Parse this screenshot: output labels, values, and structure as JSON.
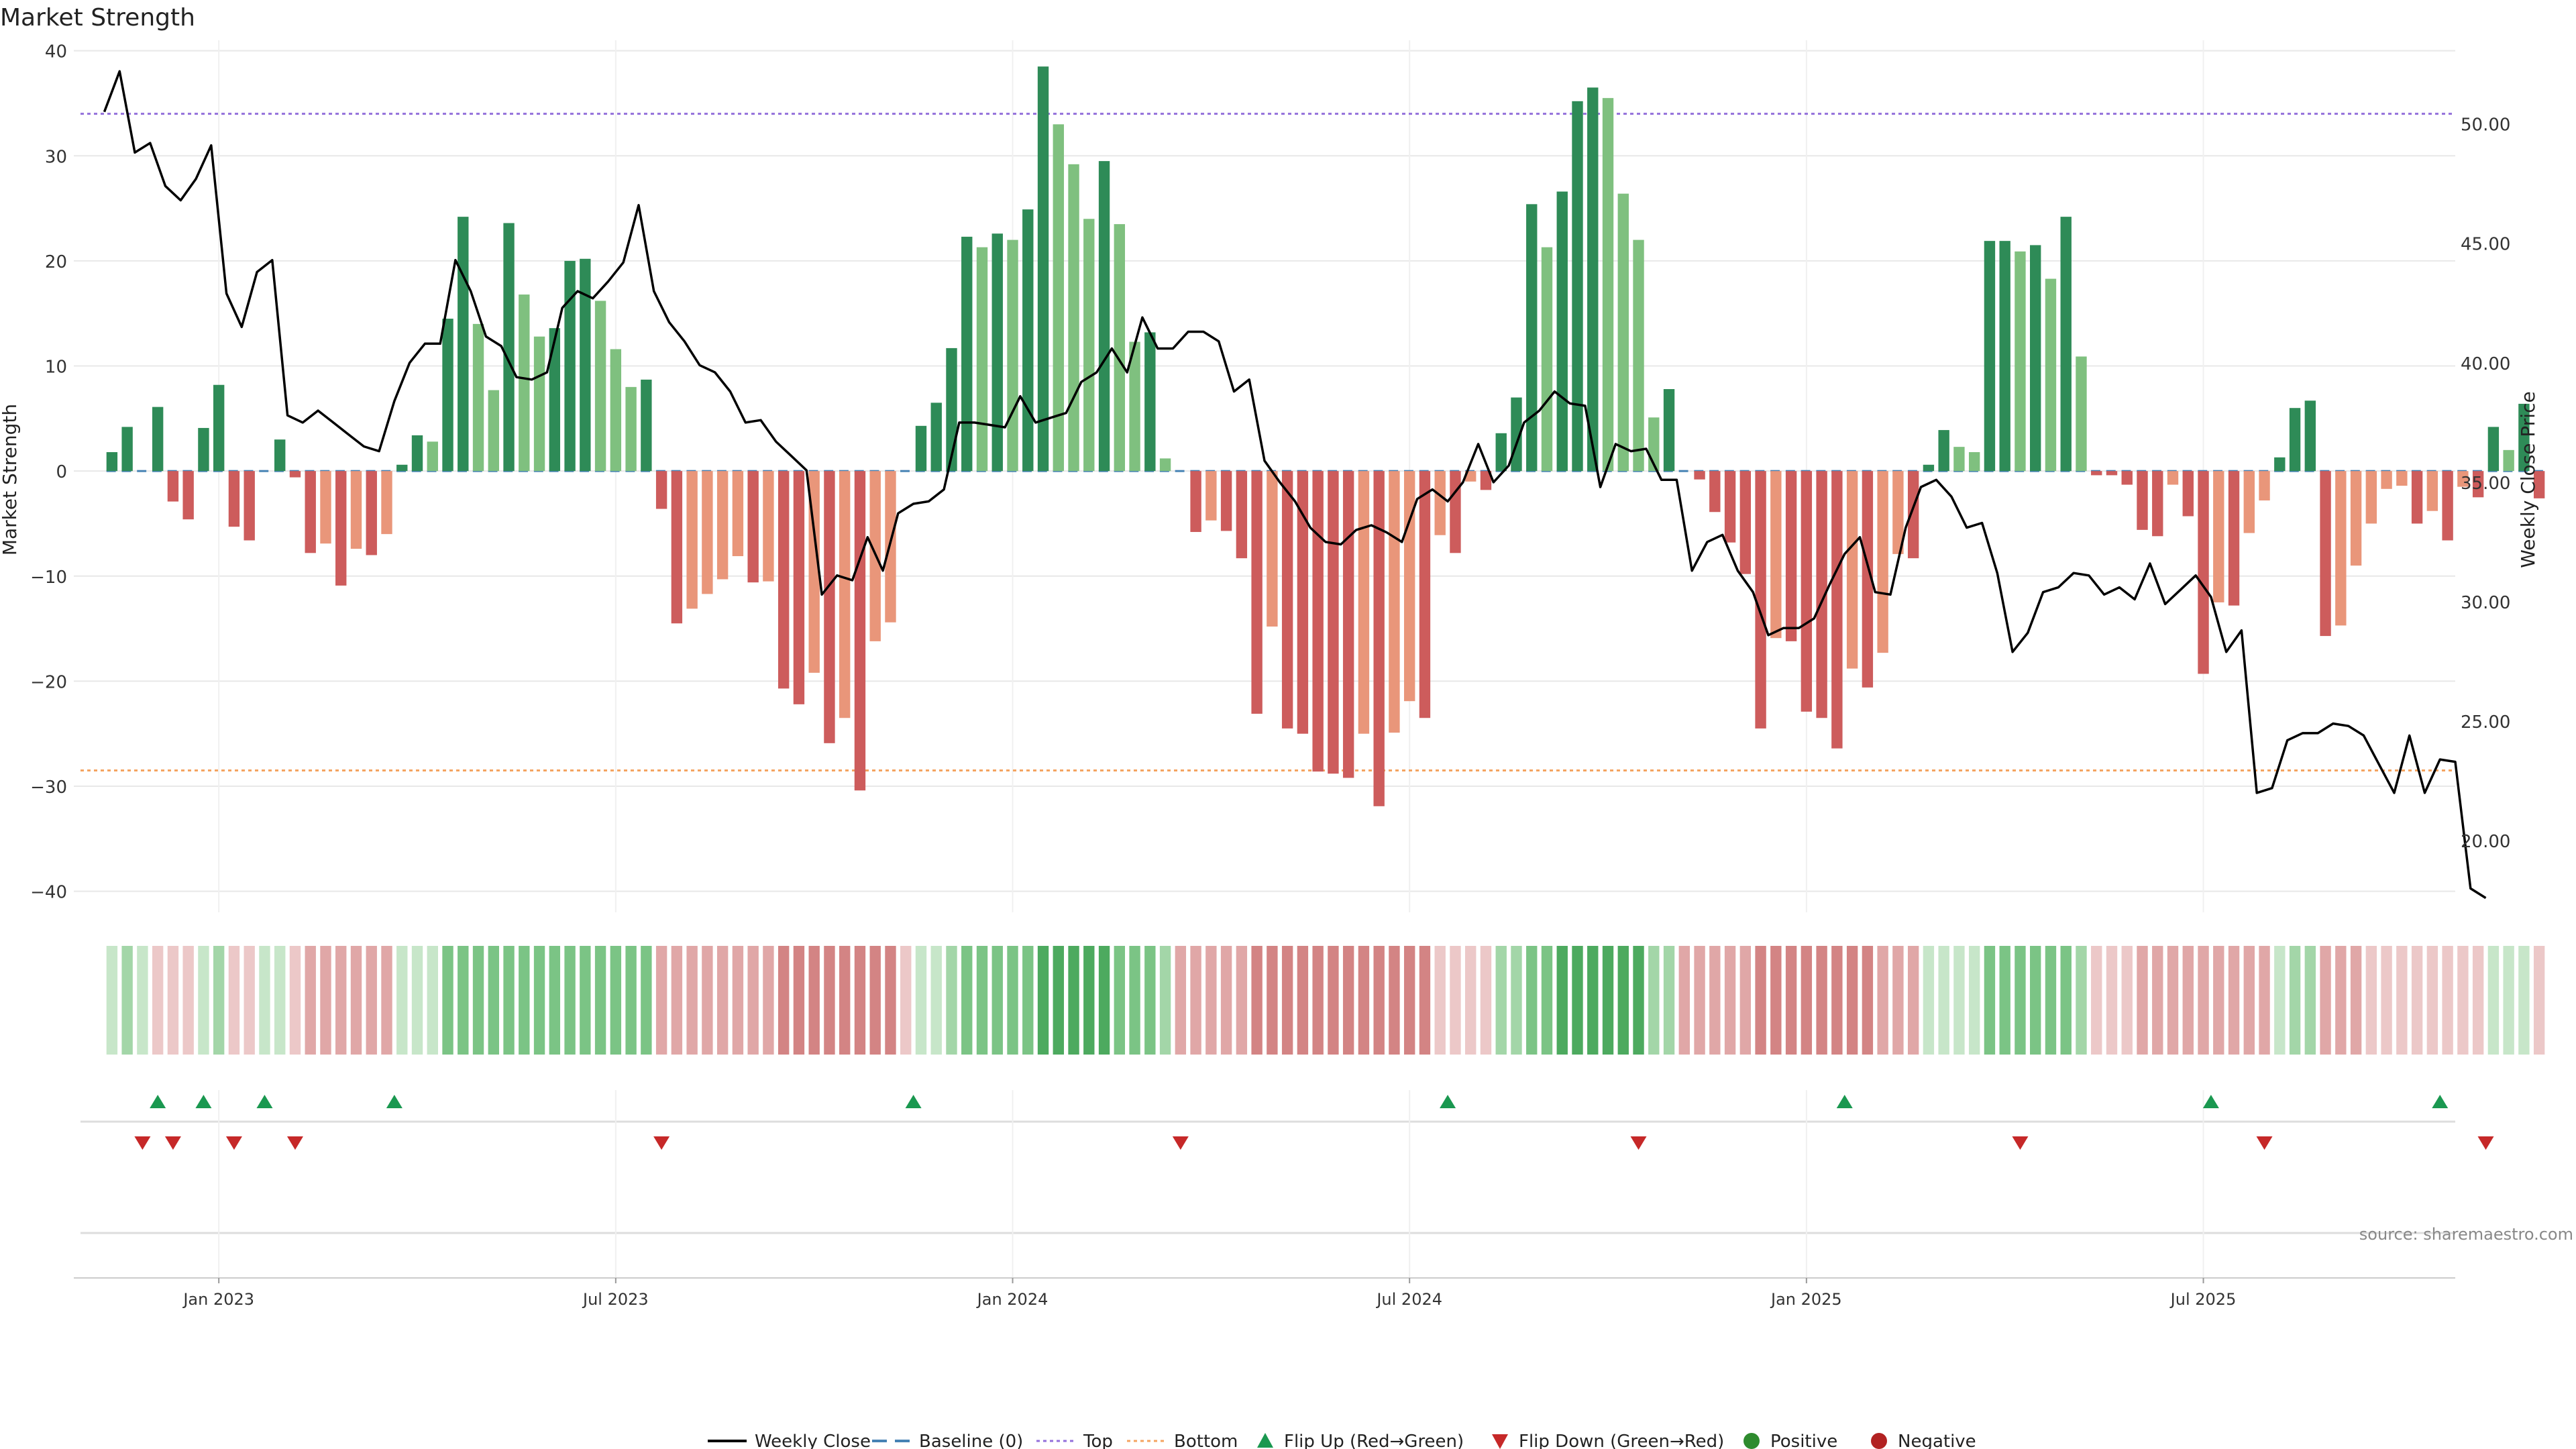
{
  "colors": {
    "pos_strong": "#2e8b57",
    "pos_light": "#7fc07f",
    "neg_strong": "#cd5c5c",
    "neg_light": "#e9967a",
    "line": "#000000",
    "baseline": "#4682b4",
    "top": "#9370db",
    "bottom": "#f4a460",
    "flip_up": "#1a9850",
    "flip_down": "#c62828",
    "positive": "#2e8b2e",
    "negative": "#b22222",
    "grid": "#e8e8e8",
    "source": "#888888"
  },
  "chart_data": {
    "type": "bar",
    "title": "Market Strength",
    "ylabel": "Market Strength",
    "y2label": "Weekly Close Price",
    "ylim": [
      -42,
      41
    ],
    "y2lim": [
      17,
      53.5
    ],
    "yticks": [
      -40,
      -30,
      -20,
      -10,
      0,
      10,
      20,
      30,
      40
    ],
    "y2ticks": [
      20,
      25,
      30,
      35,
      40,
      45,
      50
    ],
    "y2tick_labels": [
      "20.00",
      "25.00",
      "30.00",
      "35.00",
      "40.00",
      "45.00",
      "50.00"
    ],
    "x_start_week": -9.5,
    "x_end_week": 146.5,
    "xticks": [
      {
        "week": 0,
        "label": "Jan 2023"
      },
      {
        "week": 26,
        "label": "Jul 2023"
      },
      {
        "week": 52,
        "label": "Jan 2024"
      },
      {
        "week": 78,
        "label": "Jul 2024"
      },
      {
        "week": 104,
        "label": "Jan 2025"
      },
      {
        "week": 130,
        "label": "Jul 2025"
      }
    ],
    "top_level": 34,
    "bottom_level": -28.5,
    "baseline": 0,
    "series": [
      {
        "name": "Market Strength",
        "start_week": -7,
        "values": [
          1.8,
          4.2,
          0,
          6.1,
          -2.9,
          -4.6,
          4.1,
          8.2,
          -5.3,
          -6.6,
          0,
          3.0,
          -0.6,
          -7.8,
          -6.9,
          -10.9,
          -7.4,
          -8.0,
          -6.0,
          0.6,
          3.4,
          2.8,
          14.5,
          24.2,
          14.0,
          7.7,
          23.6,
          16.8,
          12.8,
          13.6,
          20.0,
          20.2,
          16.2,
          11.6,
          8.0,
          8.7,
          -3.6,
          -14.5,
          -13.1,
          -11.7,
          -10.3,
          -8.1,
          -10.6,
          -10.5,
          -20.7,
          -22.2,
          -19.2,
          -25.9,
          -23.5,
          -30.4,
          -16.2,
          -14.4,
          0,
          4.3,
          6.5,
          11.7,
          22.3,
          21.3,
          22.6,
          22.0,
          24.9,
          38.5,
          33.0,
          29.2,
          24.0,
          29.5,
          23.5,
          12.3,
          13.2,
          1.2,
          0,
          -5.8,
          -4.7,
          -5.7,
          -8.3,
          -23.1,
          -14.8,
          -24.5,
          -25.0,
          -28.6,
          -28.8,
          -29.2,
          -25.0,
          -31.9,
          -24.9,
          -21.9,
          -23.5,
          -6.1,
          -7.8,
          -1.0,
          -1.8,
          3.6,
          7.0,
          25.4,
          21.3,
          26.6,
          35.2,
          36.5,
          35.5,
          26.4,
          22.0,
          5.1,
          7.8,
          0,
          -0.8,
          -3.9,
          -6.8,
          -9.8,
          -24.5,
          -15.9,
          -16.2,
          -22.9,
          -23.5,
          -26.4,
          -18.8,
          -20.6,
          -17.3,
          -7.9,
          -8.3,
          0.6,
          3.9,
          2.3,
          1.8,
          21.9,
          21.9,
          20.9,
          21.5,
          18.3,
          24.2,
          10.9,
          -0.4,
          -0.4,
          -1.3,
          -5.6,
          -6.2,
          -1.3,
          -4.3,
          -19.3,
          -12.5,
          -12.8,
          -5.9,
          -2.8,
          1.3,
          6.0,
          6.7,
          -15.7,
          -14.7,
          -9.0,
          -5.0,
          -1.7,
          -1.4,
          -5.0,
          -3.8,
          -6.6,
          -1.5,
          -2.5,
          4.2,
          2.0,
          6.4,
          -2.6
        ]
      },
      {
        "name": "Weekly Close",
        "start_week": -7.5,
        "values": [
          50.5,
          52.2,
          48.8,
          49.2,
          47.4,
          46.8,
          47.7,
          49.1,
          42.9,
          41.5,
          43.8,
          44.3,
          37.8,
          37.5,
          38.0,
          37.5,
          37.0,
          36.5,
          36.3,
          38.4,
          40.0,
          40.8,
          40.8,
          44.3,
          43.0,
          41.1,
          40.7,
          39.4,
          39.3,
          39.6,
          42.3,
          43.0,
          42.7,
          43.4,
          44.2,
          46.6,
          43.0,
          41.7,
          40.9,
          39.9,
          39.6,
          38.8,
          37.5,
          37.6,
          36.7,
          36.1,
          35.5,
          30.3,
          31.1,
          30.9,
          32.7,
          31.3,
          33.7,
          34.1,
          34.2,
          34.7,
          37.5,
          37.5,
          37.4,
          37.3,
          38.6,
          37.5,
          37.7,
          37.9,
          39.2,
          39.6,
          40.6,
          39.6,
          41.9,
          40.6,
          40.6,
          41.3,
          41.3,
          40.9,
          38.8,
          39.3,
          35.9,
          35.0,
          34.2,
          33.1,
          32.5,
          32.4,
          33.0,
          33.2,
          32.9,
          32.5,
          34.3,
          34.7,
          34.2,
          35.0,
          36.6,
          35.0,
          35.7,
          37.5,
          38.0,
          38.8,
          38.3,
          38.2,
          34.8,
          36.6,
          36.3,
          36.4,
          35.1,
          35.1,
          31.3,
          32.5,
          32.8,
          31.3,
          30.4,
          28.6,
          28.9,
          28.9,
          29.3,
          30.7,
          32.0,
          32.7,
          30.4,
          30.3,
          33.1,
          34.8,
          35.1,
          34.4,
          33.1,
          33.3,
          31.2,
          27.9,
          28.7,
          30.4,
          30.6,
          31.2,
          31.1,
          30.3,
          30.6,
          30.1,
          31.6,
          29.9,
          30.5,
          31.1,
          30.2,
          27.9,
          28.8,
          22.0,
          22.2,
          24.2,
          24.5,
          24.5,
          24.9,
          24.8,
          24.4,
          23.2,
          22.0,
          24.4,
          22.0,
          23.4,
          23.3,
          18.0,
          17.6
        ]
      }
    ],
    "heat_strip": {
      "start_week": -7,
      "levels": [
        1,
        2,
        1,
        -1,
        -1,
        -1,
        1,
        2,
        -1,
        -1,
        1,
        1,
        -1,
        -2,
        -2,
        -2,
        -2,
        -2,
        -2,
        1,
        1,
        1,
        3,
        3,
        3,
        3,
        3,
        3,
        3,
        3,
        3,
        3,
        3,
        3,
        3,
        3,
        -2,
        -2,
        -2,
        -2,
        -2,
        -2,
        -2,
        -2,
        -3,
        -3,
        -3,
        -3,
        -3,
        -3,
        -3,
        -3,
        -1,
        1,
        1,
        2,
        3,
        3,
        3,
        3,
        3,
        4,
        4,
        4,
        4,
        4,
        3,
        3,
        3,
        2,
        -2,
        -2,
        -2,
        -2,
        -2,
        -3,
        -3,
        -3,
        -3,
        -3,
        -3,
        -3,
        -3,
        -3,
        -3,
        -3,
        -3,
        -1,
        -1,
        -1,
        -1,
        2,
        2,
        3,
        3,
        4,
        4,
        4,
        4,
        4,
        4,
        2,
        2,
        -2,
        -2,
        -2,
        -2,
        -2,
        -3,
        -3,
        -3,
        -3,
        -3,
        -3,
        -3,
        -3,
        -2,
        -2,
        -2,
        1,
        1,
        1,
        1,
        3,
        3,
        3,
        3,
        3,
        3,
        2,
        -1,
        -1,
        -1,
        -2,
        -2,
        -2,
        -2,
        -2,
        -2,
        -2,
        -2,
        -2,
        1,
        2,
        2,
        -2,
        -2,
        -2,
        -1,
        -1,
        -1,
        -1,
        -1,
        -1,
        -1,
        -1,
        1,
        1,
        1,
        -1
      ]
    },
    "flip_up_weeks": [
      -4,
      -1,
      3,
      11.5,
      45.5,
      80.5,
      106.5,
      130.5,
      145.5
    ],
    "flip_down_weeks": [
      -5,
      -3,
      1,
      5,
      29,
      63,
      93,
      118,
      134,
      148.5
    ],
    "legend": [
      "Weekly Close",
      "Baseline (0)",
      "Top",
      "Bottom",
      "Flip Up (Red→Green)",
      "Flip Down (Green→Red)",
      "Positive",
      "Negative"
    ],
    "legend_position": "bottom-center",
    "source": "source: sharemaestro.com"
  }
}
